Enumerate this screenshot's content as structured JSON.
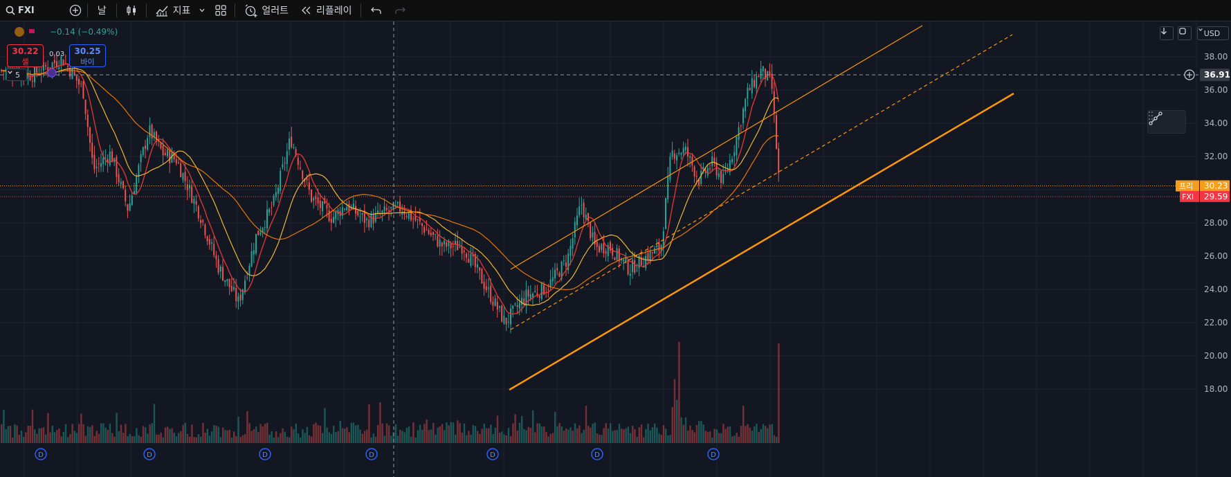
{
  "toolbar": {
    "symbol": "FXI",
    "interval": "날",
    "indicators_label": "지표",
    "alert_label": "얼러트",
    "replay_label": "리플레이"
  },
  "legend": {
    "change": "−0.14 (−0.49%)",
    "sell_price": "30.22",
    "sell_label": "셀",
    "spread": "0.03",
    "buy_price": "30.25",
    "buy_label": "바이",
    "collapse_count": "5"
  },
  "price_axis": {
    "currency": "USD",
    "ticks": [
      "38.00",
      "36.00",
      "34.00",
      "32.00",
      "30.00",
      "28.00",
      "26.00",
      "24.00",
      "22.00",
      "20.00",
      "18.00"
    ],
    "crosshair_price": "36.91",
    "pre_label": "프리",
    "pre_price": "30.23",
    "symbol_label": "FXI",
    "last_price": "29.59"
  },
  "dividend_marker": "D",
  "colors": {
    "background": "#131722",
    "candle_up": "#26a69a",
    "candle_down": "#ef5350",
    "ma_fast": "#e53935",
    "ma_mid": "#fbc02d",
    "ma_slow": "#f57c00",
    "trendline": "#ff9800",
    "pre_market": "#f59d1a",
    "last_price": "#f23645",
    "dividend": "#2962ff"
  },
  "icons": [
    "search-icon",
    "add-icon",
    "candles-icon",
    "indicators-icon",
    "layout-icon",
    "alert-icon",
    "replay-icon",
    "undo-icon",
    "redo-icon",
    "download-icon",
    "refresh-icon",
    "plus-circle-icon",
    "drag-handle-icon",
    "draw-tool-icon"
  ]
}
